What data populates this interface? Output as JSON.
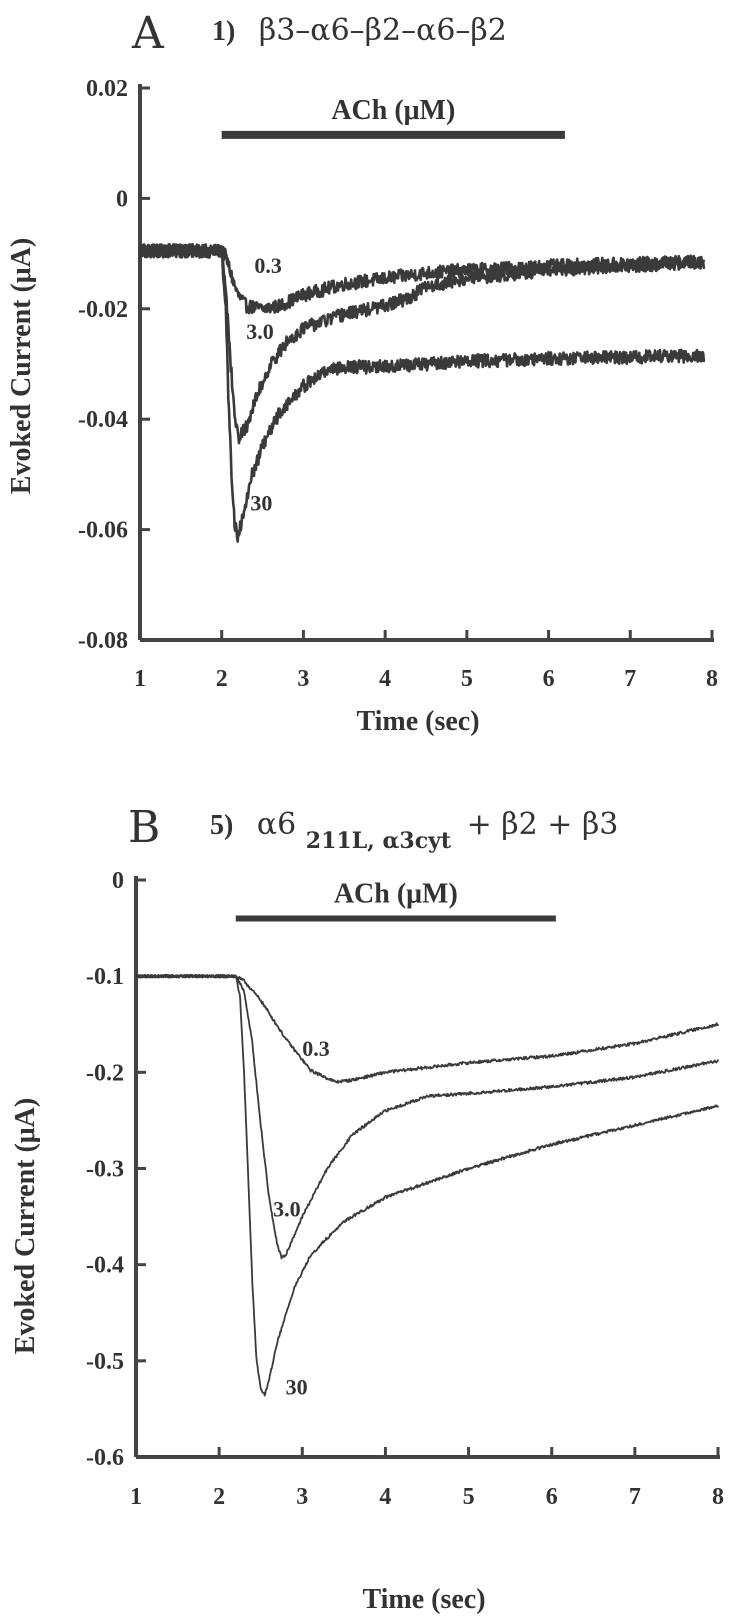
{
  "chart_data": [
    {
      "type": "line",
      "panel_letter": "A",
      "panel_title_number": "1)",
      "panel_title": "β3–α6–β2–α6–β2",
      "xlabel": "Time (sec)",
      "ylabel": "Evoked Current (μA)",
      "xlim": [
        1,
        8
      ],
      "ylim": [
        -0.08,
        0.02
      ],
      "xticks": [
        1,
        2,
        3,
        4,
        5,
        6,
        7,
        8
      ],
      "yticks": [
        0.02,
        0,
        -0.02,
        -0.04,
        -0.06,
        -0.08
      ],
      "ytick_labels": [
        "0.02",
        "0",
        "-0.02",
        "-0.04",
        "-0.06",
        "-0.08"
      ],
      "grid": false,
      "noise": 0.0012,
      "annotation": {
        "text": "ACh (μM)",
        "bar_x": [
          2.0,
          6.2
        ],
        "bar_y": 0.0115
      },
      "series": [
        {
          "name": "0.3",
          "label_at": [
            2.4,
            -0.0135
          ],
          "x": [
            1,
            1.5,
            1.95,
            2.0,
            2.05,
            2.1,
            2.15,
            2.2,
            2.3,
            2.5,
            2.7,
            3.0,
            3.5,
            4.0,
            4.5,
            5.0,
            6.0,
            7.0,
            7.9
          ],
          "y": [
            -0.0095,
            -0.0095,
            -0.0095,
            -0.0095,
            -0.0105,
            -0.013,
            -0.0155,
            -0.0175,
            -0.0195,
            -0.02,
            -0.0195,
            -0.0175,
            -0.0155,
            -0.0145,
            -0.0135,
            -0.013,
            -0.0123,
            -0.0118,
            -0.0115
          ]
        },
        {
          "name": "3.0",
          "label_at": [
            2.3,
            -0.0255
          ],
          "x": [
            1,
            1.95,
            2.0,
            2.05,
            2.1,
            2.15,
            2.2,
            2.3,
            2.45,
            2.6,
            2.8,
            3.0,
            3.5,
            4.0,
            4.3,
            4.5,
            5.0,
            6.0,
            7.0,
            7.9
          ],
          "y": [
            -0.0095,
            -0.0095,
            -0.0095,
            -0.016,
            -0.028,
            -0.038,
            -0.0435,
            -0.0415,
            -0.035,
            -0.03,
            -0.026,
            -0.0235,
            -0.021,
            -0.0195,
            -0.018,
            -0.016,
            -0.0145,
            -0.013,
            -0.0122,
            -0.0115
          ]
        },
        {
          "name": "30",
          "label_at": [
            2.35,
            -0.0565
          ],
          "x": [
            1,
            1.95,
            2.0,
            2.05,
            2.08,
            2.12,
            2.16,
            2.2,
            2.25,
            2.35,
            2.5,
            2.7,
            3.0,
            3.3,
            3.5,
            4.0,
            5.0,
            6.0,
            7.0,
            7.9
          ],
          "y": [
            -0.0095,
            -0.0095,
            -0.0095,
            -0.02,
            -0.035,
            -0.05,
            -0.059,
            -0.0615,
            -0.058,
            -0.051,
            -0.045,
            -0.039,
            -0.034,
            -0.031,
            -0.0305,
            -0.0305,
            -0.0295,
            -0.029,
            -0.0288,
            -0.0285
          ]
        }
      ]
    },
    {
      "type": "line",
      "panel_letter": "B",
      "panel_title_number": "5)",
      "panel_title_main": "α6",
      "panel_title_subscript": "211L, α3cyt",
      "panel_title_rest": "+ β2 + β3",
      "xlabel": "Time (sec)",
      "ylabel": "Evoked Current (μA)",
      "xlim": [
        1,
        8
      ],
      "ylim": [
        -0.6,
        0
      ],
      "xticks": [
        1,
        2,
        3,
        4,
        5,
        6,
        7,
        8
      ],
      "yticks": [
        0,
        -0.1,
        -0.2,
        -0.3,
        -0.4,
        -0.5,
        -0.6
      ],
      "ytick_labels": [
        "0",
        "-0.1",
        "-0.2",
        "-0.3",
        "-0.4",
        "-0.5",
        "-0.6"
      ],
      "grid": false,
      "noise": 0.0015,
      "annotation": {
        "text": "ACh (μM)",
        "bar_x": [
          2.2,
          6.05
        ],
        "bar_y": -0.04
      },
      "series": [
        {
          "name": "0.3",
          "label_at": [
            3.0,
            -0.183
          ],
          "x": [
            1,
            1.5,
            2.0,
            2.2,
            2.3,
            2.5,
            2.8,
            3.1,
            3.4,
            3.6,
            4.0,
            5.0,
            6.0,
            7.0,
            8.0
          ],
          "y": [
            -0.1,
            -0.1,
            -0.1,
            -0.1,
            -0.105,
            -0.125,
            -0.165,
            -0.198,
            -0.21,
            -0.208,
            -0.2,
            -0.19,
            -0.183,
            -0.17,
            -0.15
          ]
        },
        {
          "name": "3.0",
          "label_at": [
            2.65,
            -0.35
          ],
          "x": [
            1,
            2.0,
            2.2,
            2.3,
            2.4,
            2.5,
            2.6,
            2.7,
            2.75,
            2.8,
            3.0,
            3.3,
            3.6,
            4.0,
            4.5,
            5.0,
            6.0,
            7.0,
            8.0
          ],
          "y": [
            -0.1,
            -0.1,
            -0.1,
            -0.115,
            -0.17,
            -0.255,
            -0.33,
            -0.38,
            -0.393,
            -0.39,
            -0.35,
            -0.3,
            -0.265,
            -0.24,
            -0.225,
            -0.222,
            -0.215,
            -0.205,
            -0.188
          ]
        },
        {
          "name": "30",
          "label_at": [
            2.8,
            -0.535
          ],
          "x": [
            1,
            2.0,
            2.2,
            2.25,
            2.3,
            2.35,
            2.4,
            2.45,
            2.5,
            2.55,
            2.6,
            2.7,
            2.9,
            3.1,
            3.5,
            4.0,
            5.0,
            6.0,
            7.0,
            8.0
          ],
          "y": [
            -0.1,
            -0.1,
            -0.1,
            -0.12,
            -0.2,
            -0.31,
            -0.42,
            -0.5,
            -0.53,
            -0.535,
            -0.52,
            -0.48,
            -0.425,
            -0.39,
            -0.355,
            -0.33,
            -0.3,
            -0.275,
            -0.255,
            -0.235
          ]
        }
      ]
    }
  ]
}
